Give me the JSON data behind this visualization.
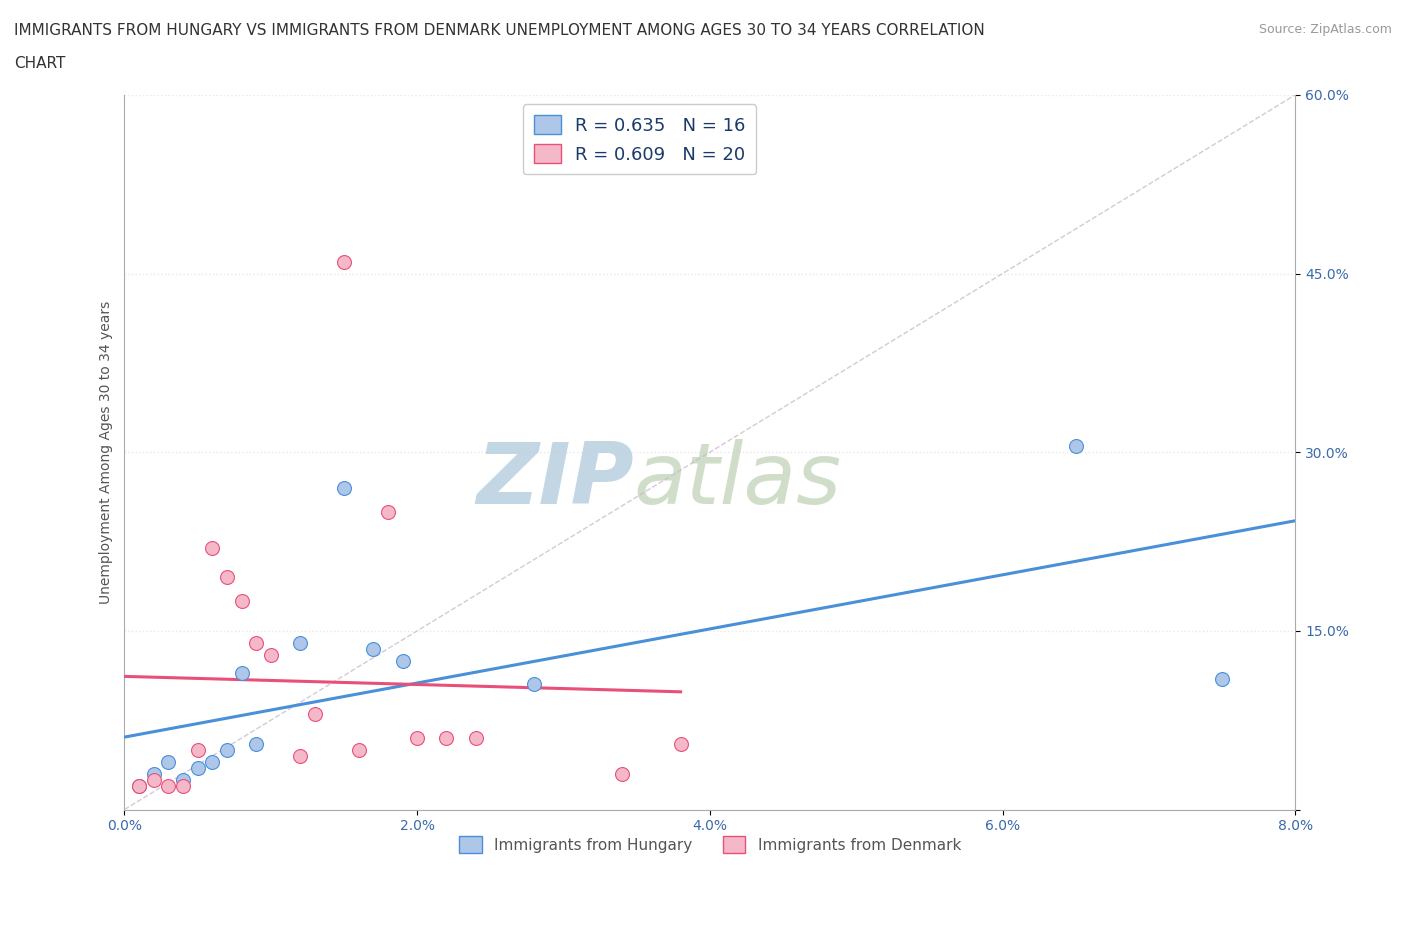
{
  "title_line1": "IMMIGRANTS FROM HUNGARY VS IMMIGRANTS FROM DENMARK UNEMPLOYMENT AMONG AGES 30 TO 34 YEARS CORRELATION",
  "title_line2": "CHART",
  "source": "Source: ZipAtlas.com",
  "ylabel": "Unemployment Among Ages 30 to 34 years",
  "xlim": [
    0.0,
    0.08
  ],
  "ylim": [
    0.0,
    0.6
  ],
  "xticks": [
    0.0,
    0.02,
    0.04,
    0.06,
    0.08
  ],
  "yticks": [
    0.0,
    0.15,
    0.3,
    0.45,
    0.6
  ],
  "xticklabels": [
    "0.0%",
    "2.0%",
    "4.0%",
    "6.0%",
    "8.0%"
  ],
  "yticklabels_right": [
    "",
    "15.0%",
    "30.0%",
    "45.0%",
    "60.0%"
  ],
  "hungary_color": "#aec6e8",
  "denmark_color": "#f5b8c8",
  "hungary_line_color": "#4a90d9",
  "denmark_line_color": "#e8507a",
  "reference_line_color": "#ccbbcc",
  "R_hungary": 0.635,
  "N_hungary": 16,
  "R_denmark": 0.609,
  "N_denmark": 20,
  "hungary_scatter_x": [
    0.001,
    0.002,
    0.003,
    0.004,
    0.005,
    0.006,
    0.007,
    0.008,
    0.009,
    0.012,
    0.015,
    0.017,
    0.019,
    0.028,
    0.065,
    0.075
  ],
  "hungary_scatter_y": [
    0.02,
    0.03,
    0.04,
    0.025,
    0.035,
    0.04,
    0.05,
    0.115,
    0.055,
    0.14,
    0.27,
    0.135,
    0.125,
    0.105,
    0.305,
    0.11
  ],
  "denmark_scatter_x": [
    0.001,
    0.002,
    0.003,
    0.004,
    0.005,
    0.006,
    0.007,
    0.008,
    0.009,
    0.01,
    0.012,
    0.013,
    0.015,
    0.016,
    0.018,
    0.02,
    0.022,
    0.024,
    0.034,
    0.038
  ],
  "denmark_scatter_y": [
    0.02,
    0.025,
    0.02,
    0.02,
    0.05,
    0.22,
    0.195,
    0.175,
    0.14,
    0.13,
    0.045,
    0.08,
    0.46,
    0.05,
    0.25,
    0.06,
    0.06,
    0.06,
    0.03,
    0.055
  ],
  "watermark_zip": "ZIP",
  "watermark_atlas": "atlas",
  "watermark_color": "#c8d8ea",
  "grid_color": "#e8e8e8",
  "background_color": "#ffffff",
  "title_fontsize": 11,
  "axis_label_fontsize": 10,
  "tick_fontsize": 10,
  "legend_fontsize": 13
}
